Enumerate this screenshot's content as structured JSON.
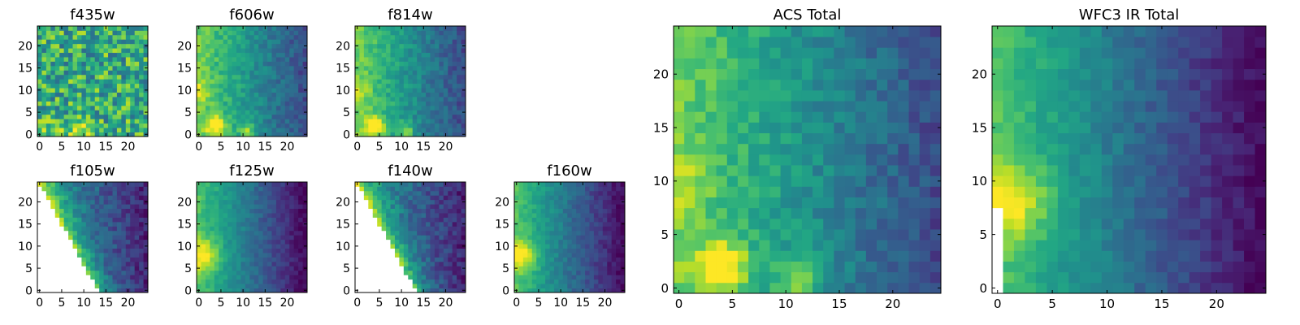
{
  "chart_data": {
    "type": "heatmap",
    "colormap": "viridis",
    "grid": false,
    "legend": "none",
    "image_size": [
      25,
      25
    ],
    "panels": [
      {
        "title": "f435w",
        "xlim": [
          0,
          24
        ],
        "ylim": [
          0,
          24
        ],
        "xticks": [
          "0",
          "5",
          "10",
          "15",
          "20"
        ],
        "yticks": [
          "0",
          "5",
          "10",
          "15",
          "20"
        ],
        "pattern": "noisy-uniform",
        "masked_lower_left": false
      },
      {
        "title": "f606w",
        "xlim": [
          0,
          24
        ],
        "ylim": [
          0,
          24
        ],
        "xticks": [
          "0",
          "5",
          "10",
          "15",
          "20"
        ],
        "yticks": [
          "0",
          "5",
          "10",
          "15",
          "20"
        ],
        "pattern": "left-bright-two-hotspots",
        "masked_lower_left": false
      },
      {
        "title": "f814w",
        "xlim": [
          0,
          24
        ],
        "ylim": [
          0,
          24
        ],
        "xticks": [
          "0",
          "5",
          "10",
          "15",
          "20"
        ],
        "yticks": [
          "0",
          "5",
          "10",
          "15",
          "20"
        ],
        "pattern": "left-bright-two-hotspots",
        "masked_lower_left": false
      },
      {
        "title": "f105w",
        "xlim": [
          0,
          24
        ],
        "ylim": [
          0,
          24
        ],
        "xticks": [
          "0",
          "5",
          "10",
          "15",
          "20"
        ],
        "yticks": [
          "0",
          "5",
          "10",
          "15",
          "20"
        ],
        "pattern": "diagonal-edge",
        "masked_lower_left": true
      },
      {
        "title": "f125w",
        "xlim": [
          0,
          24
        ],
        "ylim": [
          0,
          24
        ],
        "xticks": [
          "0",
          "5",
          "10",
          "15",
          "20"
        ],
        "yticks": [
          "0",
          "5",
          "10",
          "15",
          "20"
        ],
        "pattern": "left-bright-gradient",
        "masked_lower_left": false
      },
      {
        "title": "f140w",
        "xlim": [
          0,
          24
        ],
        "ylim": [
          0,
          24
        ],
        "xticks": [
          "0",
          "5",
          "10",
          "15",
          "20"
        ],
        "yticks": [
          "0",
          "5",
          "10",
          "15",
          "20"
        ],
        "pattern": "diagonal-edge",
        "masked_lower_left": true
      },
      {
        "title": "f160w",
        "xlim": [
          0,
          24
        ],
        "ylim": [
          0,
          24
        ],
        "xticks": [
          "0",
          "5",
          "10",
          "15",
          "20"
        ],
        "yticks": [
          "0",
          "5",
          "10",
          "15",
          "20"
        ],
        "pattern": "left-bright-gradient",
        "masked_lower_left": false
      },
      {
        "title": "ACS Total",
        "xlim": [
          0,
          24
        ],
        "ylim": [
          0,
          24
        ],
        "xticks": [
          "0",
          "5",
          "10",
          "15",
          "20"
        ],
        "yticks": [
          "0",
          "5",
          "10",
          "15",
          "20"
        ],
        "pattern": "left-bright-two-hotspots",
        "masked_lower_left": false
      },
      {
        "title": "WFC3 IR Total",
        "xlim": [
          0,
          24
        ],
        "ylim": [
          0,
          24
        ],
        "xticks": [
          "0",
          "5",
          "10",
          "15",
          "20"
        ],
        "yticks": [
          "0",
          "5",
          "10",
          "15",
          "20"
        ],
        "pattern": "left-bright-gradient",
        "masked_lower_left": true
      }
    ]
  }
}
